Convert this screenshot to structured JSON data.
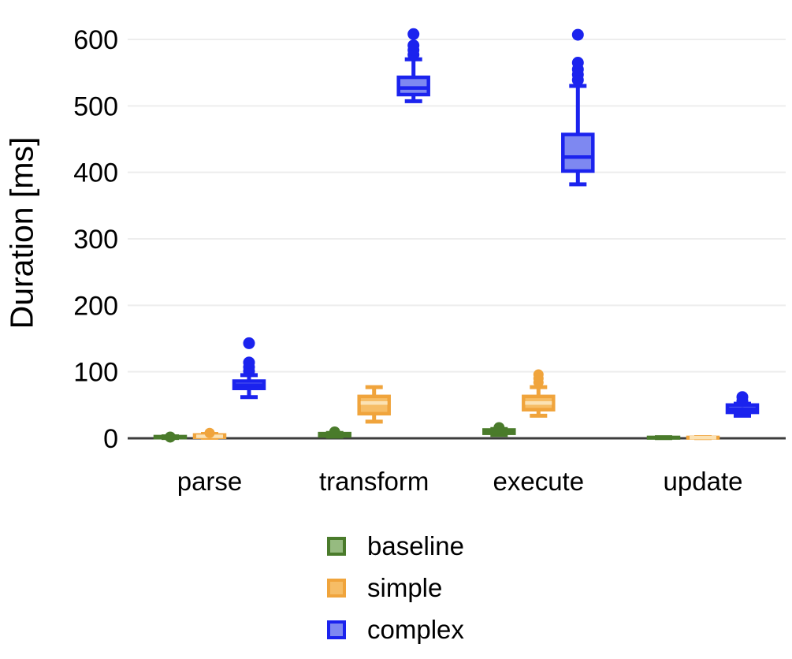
{
  "chart_data": {
    "type": "boxplot",
    "title": "",
    "ylabel": "Duration [ms]",
    "xlabel": "",
    "categories": [
      "parse",
      "transform",
      "execute",
      "update"
    ],
    "yticks": [
      0,
      100,
      200,
      300,
      400,
      500,
      600
    ],
    "ylim": [
      0,
      630
    ],
    "grid": "horizontal",
    "legend_position": "bottom-center",
    "axis_colors": {
      "grid_color": "#ededed",
      "zero_line_color": "#3c3c3c",
      "text_color": "#000000"
    },
    "series": [
      {
        "name": "baseline",
        "color": "#4a7b2b",
        "fill": "#96bb80",
        "boxes": [
          {
            "category": "parse",
            "whisker_low": 0.5,
            "q1": 1,
            "median": 1.5,
            "q3": 2.5,
            "whisker_high": 3,
            "outliers": [
              1.8
            ]
          },
          {
            "category": "transform",
            "whisker_low": 2.5,
            "q1": 3.5,
            "median": 5,
            "q3": 7,
            "whisker_high": 8,
            "outliers": [
              9.5
            ]
          },
          {
            "category": "execute",
            "whisker_low": 5,
            "q1": 7.5,
            "median": 10,
            "q3": 12.5,
            "whisker_high": 14,
            "outliers": [
              16
            ]
          },
          {
            "category": "update",
            "whisker_low": 0.3,
            "q1": 0.5,
            "median": 0.9,
            "q3": 1.3,
            "whisker_high": 1.6,
            "outliers": []
          }
        ]
      },
      {
        "name": "simple",
        "color": "#f0a43c",
        "fill": "#f6bd66",
        "median_color": "#fbe2b4",
        "boxes": [
          {
            "category": "parse",
            "whisker_low": 0.8,
            "q1": 1.5,
            "median": 3,
            "q3": 5,
            "whisker_high": 6.5,
            "outliers": [
              8
            ]
          },
          {
            "category": "transform",
            "whisker_low": 25,
            "q1": 37,
            "median": 53,
            "q3": 63,
            "whisker_high": 77,
            "outliers": []
          },
          {
            "category": "execute",
            "whisker_low": 34,
            "q1": 43,
            "median": 53,
            "q3": 63,
            "whisker_high": 77,
            "outliers": [
              84,
              90,
              96
            ]
          },
          {
            "category": "update",
            "whisker_low": 0.3,
            "q1": 0.5,
            "median": 0.9,
            "q3": 1.3,
            "whisker_high": 1.6,
            "outliers": []
          }
        ]
      },
      {
        "name": "complex",
        "color": "#1b23ee",
        "fill": "#7e88f1",
        "boxes": [
          {
            "category": "parse",
            "whisker_low": 62,
            "q1": 75,
            "median": 80,
            "q3": 86,
            "whisker_high": 95,
            "outliers": [
              101,
              107,
              114,
              143
            ]
          },
          {
            "category": "transform",
            "whisker_low": 507,
            "q1": 517,
            "median": 527,
            "q3": 543,
            "whisker_high": 570,
            "outliers": [
              577,
              584,
              591,
              608
            ]
          },
          {
            "category": "execute",
            "whisker_low": 382,
            "q1": 402,
            "median": 423,
            "q3": 457,
            "whisker_high": 530,
            "outliers": [
              539,
              547,
              555,
              565,
              607
            ]
          },
          {
            "category": "update",
            "whisker_low": 34,
            "q1": 39,
            "median": 44,
            "q3": 50,
            "whisker_high": 52,
            "outliers": [
              56,
              62
            ]
          }
        ]
      }
    ]
  }
}
